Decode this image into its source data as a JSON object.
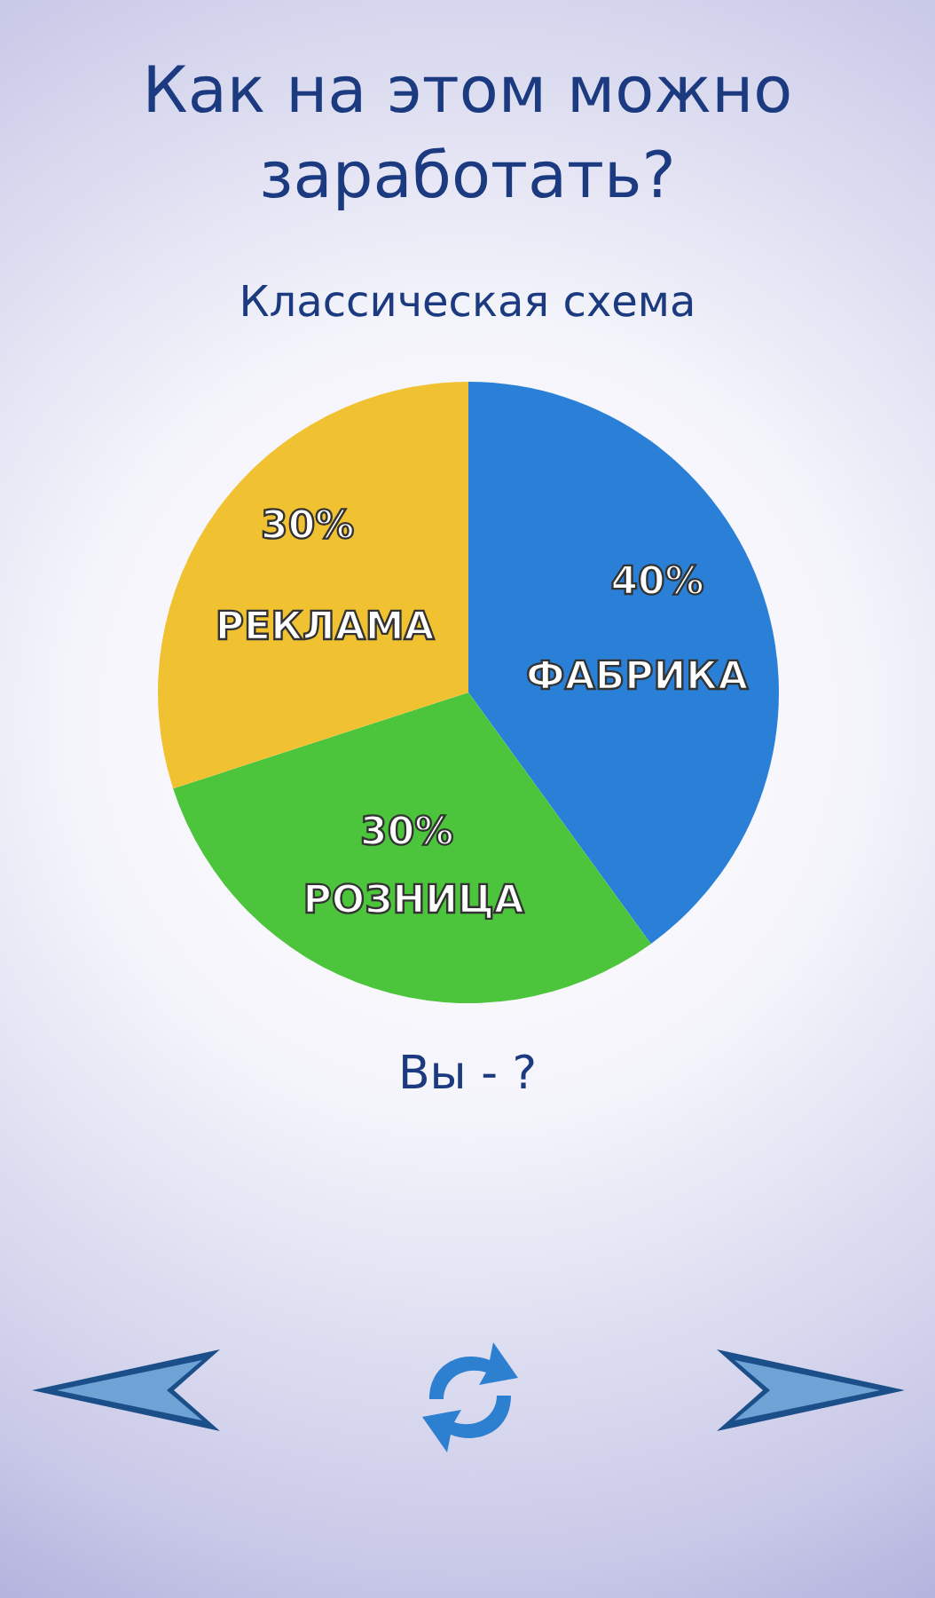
{
  "chart_data": {
    "type": "pie",
    "title": "Как на этом можно заработать?",
    "subtitle": "Классическая схема",
    "categories": [
      "ФАБРИКА",
      "РОЗНИЦА",
      "РЕКЛАМА"
    ],
    "values": [
      40,
      30,
      30
    ],
    "value_labels": [
      "40%",
      "30%",
      "30%"
    ],
    "colors": [
      "#2a7fd6",
      "#4cc43c",
      "#f0c232"
    ],
    "annotations": [
      "Вы - ?"
    ]
  }
}
